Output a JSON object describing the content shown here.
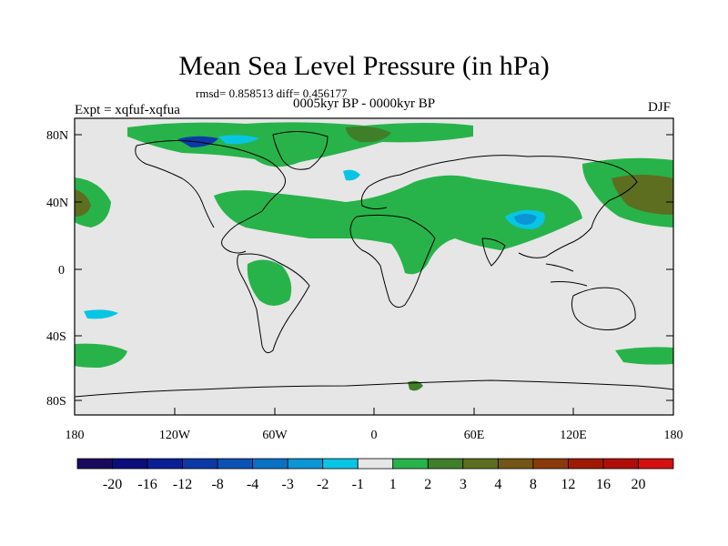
{
  "title": "Mean Sea Level Pressure (in hPa)",
  "stats": "rmsd= 0.858513 diff= 0.456177",
  "experiment": "Expt = xqfuf-xqfua",
  "period": "0005kyr BP - 0000kyr BP",
  "season": "DJF",
  "map": {
    "y_tick_labels": [
      "80N",
      "40N",
      "0",
      "40S",
      "80S"
    ],
    "x_tick_labels": [
      "180",
      "120W",
      "60W",
      "0",
      "60E",
      "120E",
      "180"
    ],
    "background_color": "#e6e6e6",
    "coast_color": "#000000"
  },
  "colorbar": {
    "labels": [
      "-20",
      "-16",
      "-12",
      "-8",
      "-4",
      "-3",
      "-2",
      "-1",
      "1",
      "2",
      "3",
      "4",
      "8",
      "12",
      "16",
      "20"
    ],
    "colors": [
      "#1a0a5c",
      "#0b0d7a",
      "#0a1f94",
      "#0b3aa6",
      "#0b52b4",
      "#0a70c4",
      "#0b95d4",
      "#09c5e4",
      "#e6e6e6",
      "#27b34a",
      "#3f7f2a",
      "#5e6e20",
      "#735615",
      "#8a3a0a",
      "#9f1a05",
      "#b00d08",
      "#d41010"
    ]
  }
}
